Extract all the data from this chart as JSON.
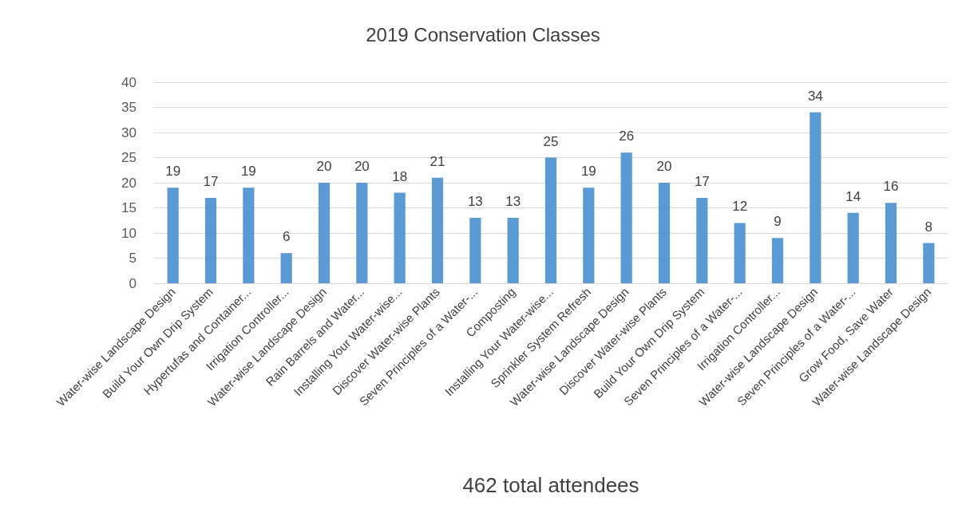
{
  "chart_data": {
    "type": "bar",
    "title": "2019 Conservation Classes",
    "xlabel": "462 total attendees",
    "categories": [
      "Water-wise Landscape Design",
      "Build Your Own Drip System",
      "Hypertufas and Container...",
      "Irrigation Controller...",
      "Water-wise Landscape Design",
      "Rain Barrels and Water...",
      "Installing Your Water-wise...",
      "Discover Water-wise Plants",
      "Seven Principles of a Water-...",
      "Composting",
      "Installing Your Water-wise...",
      "Sprinkler System Refresh",
      "Water-wise Landscape Design",
      "Discover Water-wise Plants",
      "Build Your Own Drip System",
      "Seven Principles of a Water-...",
      "Irrigation Controller...",
      "Water-wise Landscape Design",
      "Seven Principles of a Water-...",
      "Grow Food, Save Water",
      "Water-wise Landscape Design"
    ],
    "values": [
      19,
      17,
      19,
      6,
      20,
      20,
      18,
      21,
      13,
      13,
      25,
      19,
      26,
      20,
      17,
      12,
      9,
      34,
      14,
      16,
      8
    ],
    "color": "#5b9bd5",
    "ylim": [
      0,
      40
    ],
    "yticks": [
      0,
      5,
      10,
      15,
      20,
      25,
      30,
      35,
      40
    ],
    "grid": "y",
    "data_labels": true
  }
}
